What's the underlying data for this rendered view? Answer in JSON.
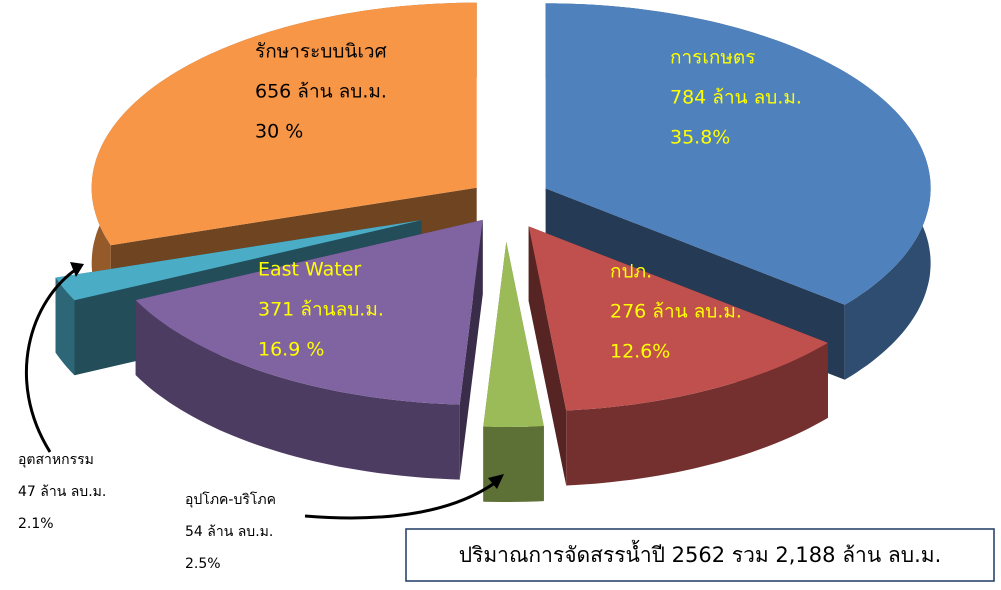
{
  "chart_data": {
    "type": "pie",
    "categories": [
      "การเกษตร",
      "กปภ.",
      "อุปโภค-บริโภค",
      "East Water",
      "อุตสาหกรรม",
      "รักษาระบบนิเวศ"
    ],
    "amount_labels": [
      "784 ล้าน ลบ.ม.",
      "276 ล้าน ลบ.ม.",
      "54 ล้าน ลบ.ม.",
      "371  ล้านลบ.ม.",
      "47 ล้าน ลบ.ม.",
      "656 ล้าน ลบ.ม."
    ],
    "values": [
      35.8,
      12.6,
      2.5,
      16.9,
      2.1,
      30
    ],
    "value_labels": [
      "35.8%",
      "12.6%",
      "2.5%",
      "16.9 %",
      "2.1%",
      "30 %"
    ],
    "colors": [
      "#4f81bd",
      "#c0504d",
      "#9bbb59",
      "#8064a2",
      "#4bacc6",
      "#f79646"
    ],
    "annotation": "ปริมาณการจัดสรรน้ำปี  2562 รวม 2,188 ล้าน ลบ.ม."
  }
}
